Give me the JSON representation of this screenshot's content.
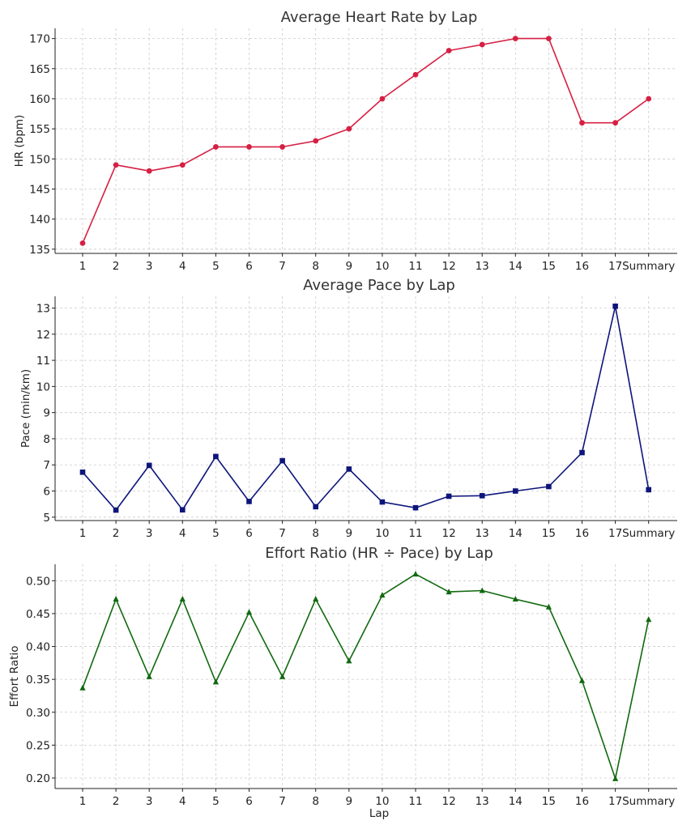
{
  "chart_data": [
    {
      "type": "line",
      "title": "Average Heart Rate by Lap",
      "xlabel": "",
      "ylabel": "HR (bpm)",
      "categories": [
        "1",
        "2",
        "3",
        "4",
        "5",
        "6",
        "7",
        "8",
        "9",
        "10",
        "11",
        "12",
        "13",
        "14",
        "15",
        "16",
        "17",
        "Summary"
      ],
      "series": [
        {
          "values": [
            136,
            149,
            148,
            149,
            152,
            152,
            152,
            153,
            155,
            160,
            164,
            168,
            169,
            170,
            170,
            156,
            156,
            160
          ],
          "color": "#d62043",
          "marker": "circle"
        }
      ],
      "ylim": [
        134.3,
        171.7
      ],
      "yticks": [
        135,
        140,
        145,
        150,
        155,
        160,
        165,
        170
      ],
      "ytick_labels": [
        "135",
        "140",
        "145",
        "150",
        "155",
        "160",
        "165",
        "170"
      ],
      "grid": true
    },
    {
      "type": "line",
      "title": "Average Pace by Lap",
      "xlabel": "",
      "ylabel": "Pace (min/km)",
      "categories": [
        "1",
        "2",
        "3",
        "4",
        "5",
        "6",
        "7",
        "8",
        "9",
        "10",
        "11",
        "12",
        "13",
        "14",
        "15",
        "16",
        "17",
        "Summary"
      ],
      "series": [
        {
          "values": [
            6.72,
            5.27,
            6.98,
            5.28,
            7.32,
            5.6,
            7.16,
            5.4,
            6.84,
            5.58,
            5.36,
            5.8,
            5.82,
            6.0,
            6.17,
            7.47,
            13.07,
            6.05
          ],
          "color": "#0d157a",
          "marker": "square"
        }
      ],
      "ylim": [
        4.87,
        13.45
      ],
      "yticks": [
        5,
        6,
        7,
        8,
        9,
        10,
        11,
        12,
        13
      ],
      "ytick_labels": [
        "5",
        "6",
        "7",
        "8",
        "9",
        "10",
        "11",
        "12",
        "13"
      ],
      "grid": true
    },
    {
      "type": "line",
      "title": "Effort Ratio (HR ÷ Pace) by Lap",
      "xlabel": "Lap",
      "ylabel": "Effort Ratio",
      "categories": [
        "1",
        "2",
        "3",
        "4",
        "5",
        "6",
        "7",
        "8",
        "9",
        "10",
        "11",
        "12",
        "13",
        "14",
        "15",
        "16",
        "17",
        "Summary"
      ],
      "series": [
        {
          "values": [
            0.337,
            0.472,
            0.354,
            0.472,
            0.346,
            0.452,
            0.354,
            0.472,
            0.378,
            0.478,
            0.51,
            0.483,
            0.485,
            0.472,
            0.46,
            0.348,
            0.199,
            0.441
          ],
          "color": "#11690f",
          "marker": "triangle"
        }
      ],
      "ylim": [
        0.184,
        0.525
      ],
      "yticks": [
        0.2,
        0.25,
        0.3,
        0.35,
        0.4,
        0.45,
        0.5
      ],
      "ytick_labels": [
        "0.20",
        "0.25",
        "0.30",
        "0.35",
        "0.40",
        "0.45",
        "0.50"
      ],
      "grid": true
    }
  ]
}
